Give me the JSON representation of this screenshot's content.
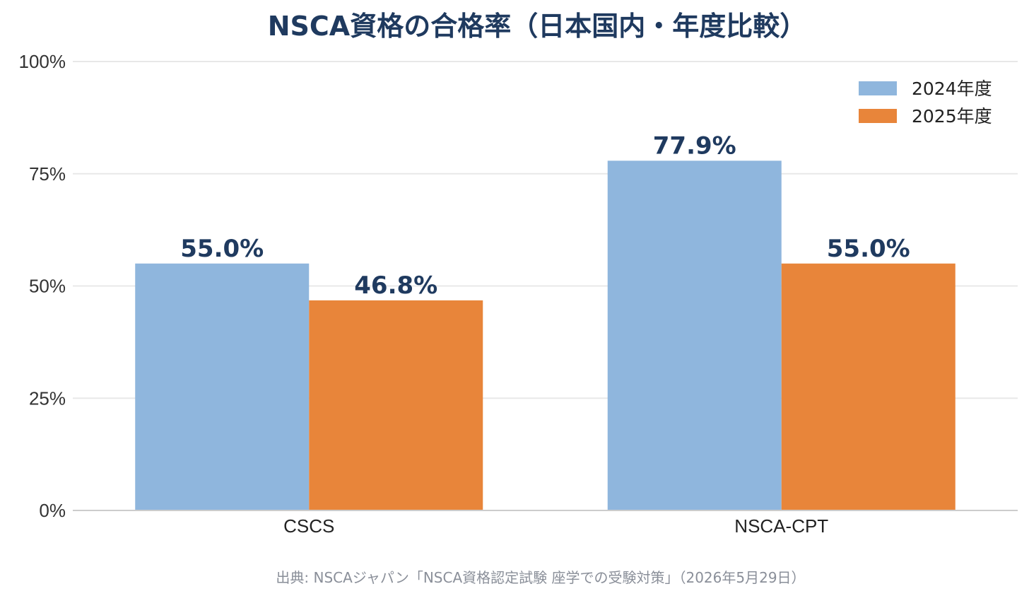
{
  "chart_data": {
    "type": "bar",
    "title": "NSCA資格の合格率（日本国内・年度比較）",
    "categories": [
      "CSCS",
      "NSCA-CPT"
    ],
    "series": [
      {
        "name": "2024年度",
        "values": [
          55.0,
          77.9
        ],
        "labels": [
          "55.0%",
          "77.9%"
        ],
        "color": "#8fb6dd"
      },
      {
        "name": "2025年度",
        "values": [
          46.8,
          55.0
        ],
        "labels": [
          "46.8%",
          "55.0%"
        ],
        "color": "#e8853a"
      }
    ],
    "ylim": [
      0,
      100
    ],
    "yticks": [
      0,
      25,
      50,
      75,
      100
    ],
    "ytick_labels": [
      "0%",
      "25%",
      "50%",
      "75%",
      "100%"
    ],
    "xlabel": "",
    "ylabel": "",
    "grid": true,
    "legend_position": "top-right",
    "source": "出典: NSCAジャパン「NSCA資格認定試験 座学での受験対策」（2026年5月29日）"
  },
  "colors": {
    "title": "#1f3a5f",
    "grid": "#e8e8e8",
    "axis": "#cccccc"
  }
}
